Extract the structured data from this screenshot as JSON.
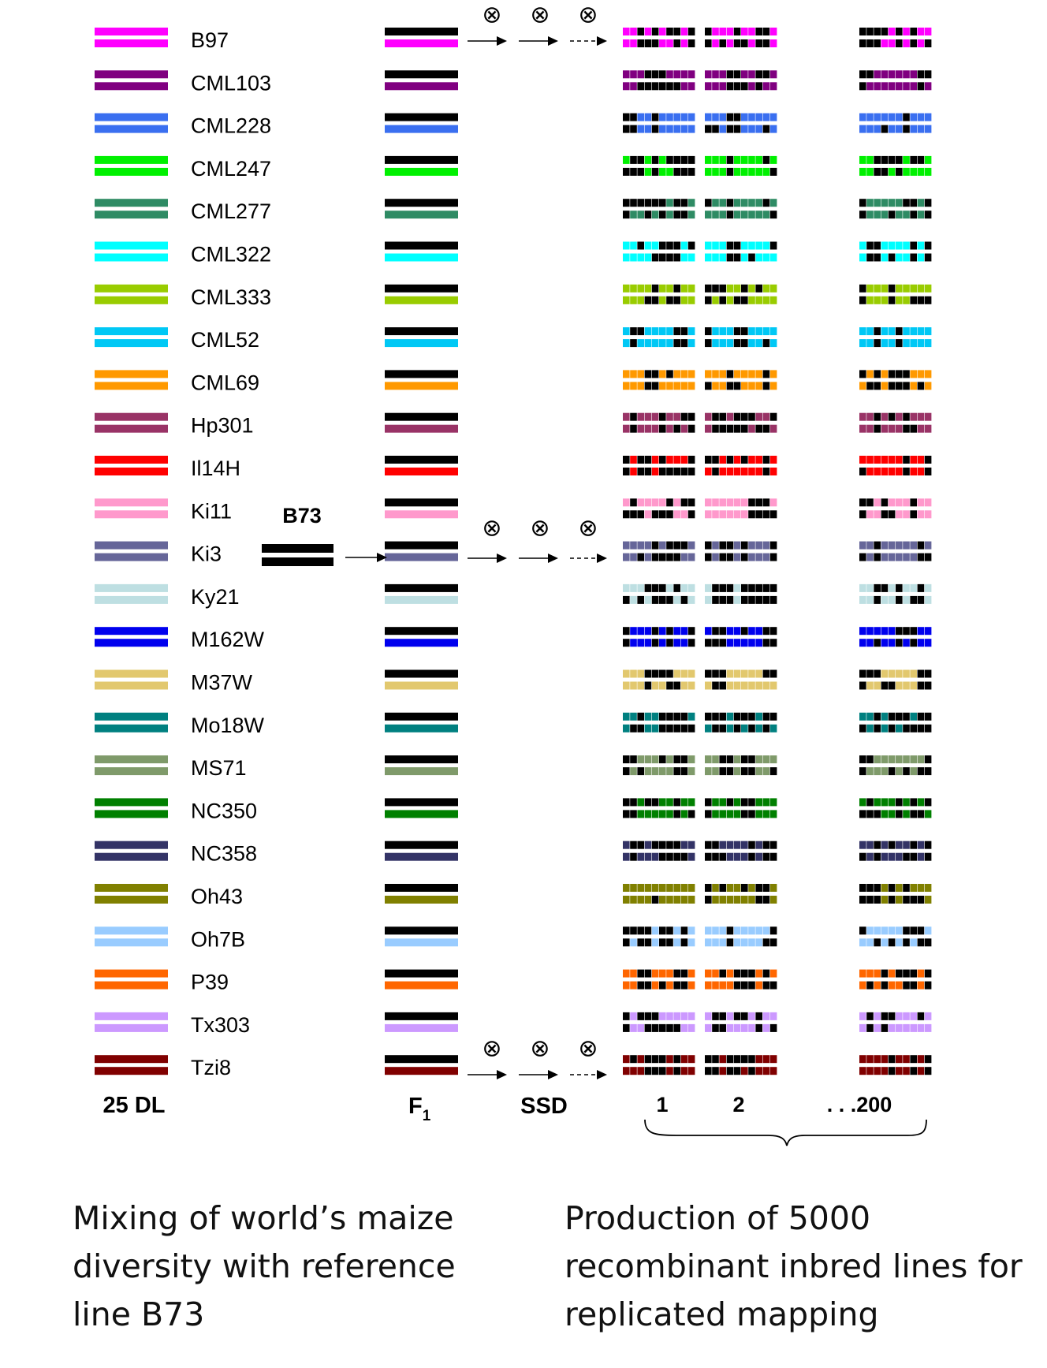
{
  "lines": [
    {
      "name": "B97",
      "color": "#FF00FF"
    },
    {
      "name": "CML103",
      "color": "#800080"
    },
    {
      "name": "CML228",
      "color": "#3A6FF0"
    },
    {
      "name": "CML247",
      "color": "#00F000"
    },
    {
      "name": "CML277",
      "color": "#2E8B64"
    },
    {
      "name": "CML322",
      "color": "#00FFFF"
    },
    {
      "name": "CML333",
      "color": "#99CC00"
    },
    {
      "name": "CML52",
      "color": "#00C8F5"
    },
    {
      "name": "CML69",
      "color": "#FF9900"
    },
    {
      "name": "Hp301",
      "color": "#993366"
    },
    {
      "name": "Il14H",
      "color": "#FF0000"
    },
    {
      "name": "Ki11",
      "color": "#FF99CC"
    },
    {
      "name": "Ki3",
      "color": "#666699"
    },
    {
      "name": "Ky21",
      "color": "#BEDFE2"
    },
    {
      "name": "M162W",
      "color": "#0000EE"
    },
    {
      "name": "M37W",
      "color": "#E2C86E"
    },
    {
      "name": "Mo18W",
      "color": "#008080"
    },
    {
      "name": "MS71",
      "color": "#7F9A6A"
    },
    {
      "name": "NC350",
      "color": "#008000"
    },
    {
      "name": "NC358",
      "color": "#333366"
    },
    {
      "name": "Oh43",
      "color": "#808000"
    },
    {
      "name": "Oh7B",
      "color": "#99CCFF"
    },
    {
      "name": "P39",
      "color": "#FF6600"
    },
    {
      "name": "Tx303",
      "color": "#CC99FF"
    },
    {
      "name": "Tzi8",
      "color": "#800000"
    }
  ],
  "reference": {
    "label": "B73",
    "color": "#000000"
  },
  "selfing_symbol": "⊗",
  "labels": {
    "dl": "25 DL",
    "f1_main": "F",
    "f1_sub": "1",
    "ssd": "SSD",
    "ril_1": "1",
    "ril_2": "2",
    "ril_200": ". . .200"
  },
  "captions": {
    "left": "Mixing of world’s maize\ndiversity with reference\nline B73",
    "right": "Production of 5000\nrecombinant inbred lines for\nreplicated mapping"
  },
  "colors": {
    "text": "#111111",
    "black": "#000000"
  }
}
